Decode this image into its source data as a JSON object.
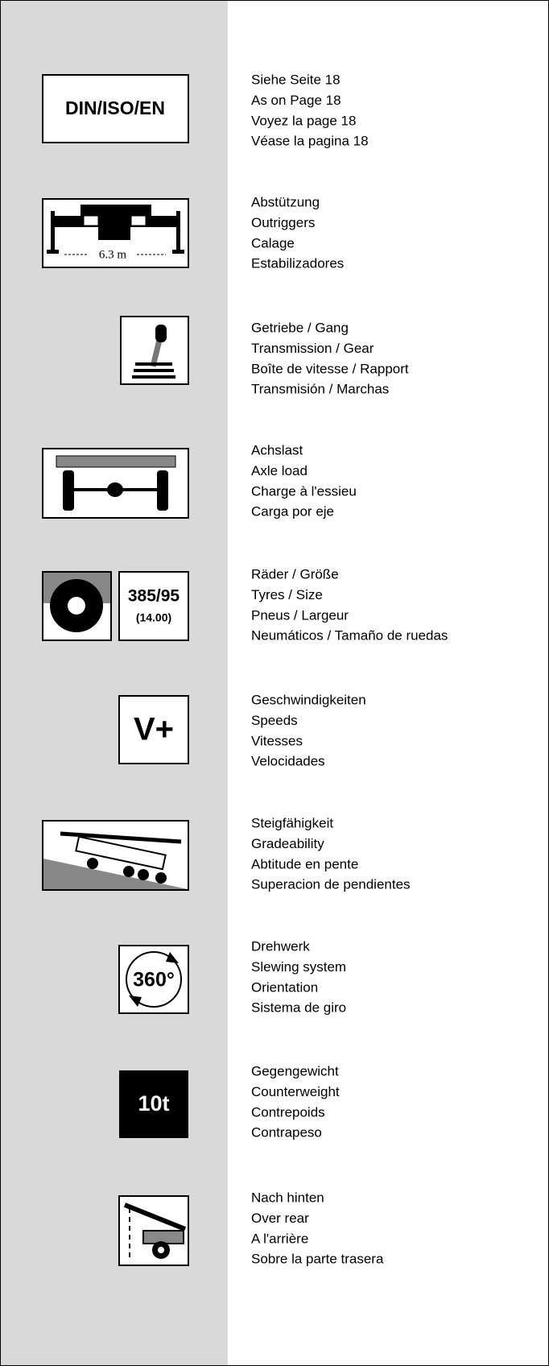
{
  "sections": [
    {
      "icon_text": [
        "DIN/ISO/EN"
      ],
      "lines": [
        "Siehe Seite 18",
        "As on Page 18",
        "Voyez la page 18",
        "Véase la pagina 18"
      ]
    },
    {
      "icon_text": [
        "6.3 m"
      ],
      "lines": [
        "Abstützung",
        "Outriggers",
        "Calage",
        "Estabilizadores"
      ]
    },
    {
      "icon_text": [],
      "lines": [
        "Getriebe / Gang",
        "Transmission / Gear",
        "Boîte de vitesse / Rapport",
        "Transmisión / Marchas"
      ]
    },
    {
      "icon_text": [],
      "lines": [
        "Achslast",
        "Axle load",
        "Charge à l'essieu",
        "Carga por eje"
      ]
    },
    {
      "icon_text": [
        "385/95",
        "(14.00)"
      ],
      "lines": [
        "Räder / Größe",
        "Tyres / Size",
        "Pneus / Largeur",
        "Neumáticos / Tamaño de ruedas"
      ]
    },
    {
      "icon_text": [
        "V+"
      ],
      "lines": [
        "Geschwindigkeiten",
        "Speeds",
        "Vitesses",
        "Velocidades"
      ]
    },
    {
      "icon_text": [],
      "lines": [
        "Steigfähigkeit",
        "Gradeability",
        "Abtitude en pente",
        "Superacion de pendientes"
      ]
    },
    {
      "icon_text": [
        "360°"
      ],
      "lines": [
        "Drehwerk",
        "Slewing system",
        "Orientation",
        "Sistema de giro"
      ]
    },
    {
      "icon_text": [
        "10t"
      ],
      "lines": [
        "Gegengewicht",
        "Counterweight",
        "Contrepoids",
        "Contrapeso"
      ]
    },
    {
      "icon_text": [],
      "lines": [
        "Nach hinten",
        "Over rear",
        "A l'arrière",
        "Sobre la parte trasera"
      ]
    }
  ]
}
